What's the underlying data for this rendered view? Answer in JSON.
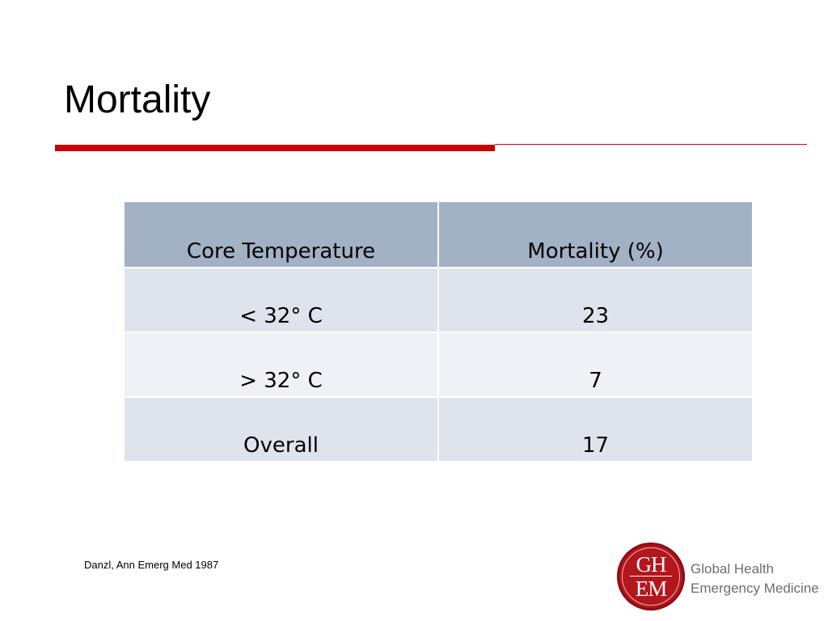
{
  "slide": {
    "title": "Mortality",
    "table": {
      "headers": [
        "Core Temperature",
        "Mortality (%)"
      ],
      "rows": [
        [
          "< 32°  C",
          "23"
        ],
        [
          "> 32°  C",
          "7"
        ],
        [
          "Overall",
          "17"
        ]
      ]
    },
    "citation": "Danzl, Ann Emerg Med 1987",
    "logo": {
      "monogram_line1": "GH",
      "monogram_line2": "EM",
      "name_line1": "Global Health",
      "name_line2": "Emergency Medicine"
    },
    "colors": {
      "accent_red": "#cc0000",
      "header_fill": "#a2b1c4",
      "row_fill_dark": "#dfe3ec",
      "row_fill_light": "#f0f1f6",
      "logo_red": "#b3161c"
    }
  }
}
